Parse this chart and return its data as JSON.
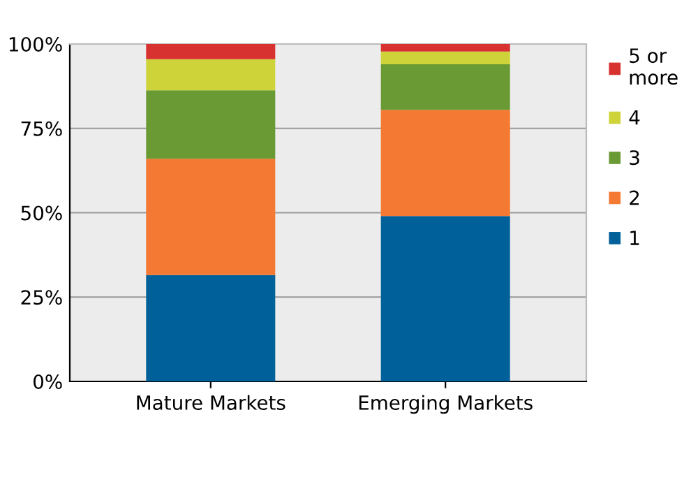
{
  "chart_data": {
    "type": "bar",
    "stacked": true,
    "categories": [
      "Mature Markets",
      "Emerging Markets"
    ],
    "series": [
      {
        "name": "1",
        "color": "#00609a",
        "values": [
          31.5,
          49.0
        ]
      },
      {
        "name": "2",
        "color": "#f47932",
        "values": [
          34.5,
          31.5
        ]
      },
      {
        "name": "3",
        "color": "#6a9a34",
        "values": [
          20.3,
          13.5
        ]
      },
      {
        "name": "4",
        "color": "#cfd33a",
        "values": [
          9.2,
          3.8
        ]
      },
      {
        "name": "5 or\nmore",
        "color": "#d7322f",
        "values": [
          4.5,
          2.2
        ]
      }
    ],
    "ylim": [
      0,
      100
    ],
    "yticks": [
      {
        "value": 0,
        "label": "0%"
      },
      {
        "value": 25,
        "label": "25%"
      },
      {
        "value": 50,
        "label": "50%"
      },
      {
        "value": 75,
        "label": "75%"
      },
      {
        "value": 100,
        "label": "100%"
      }
    ],
    "grid": "y",
    "legend": "right"
  }
}
